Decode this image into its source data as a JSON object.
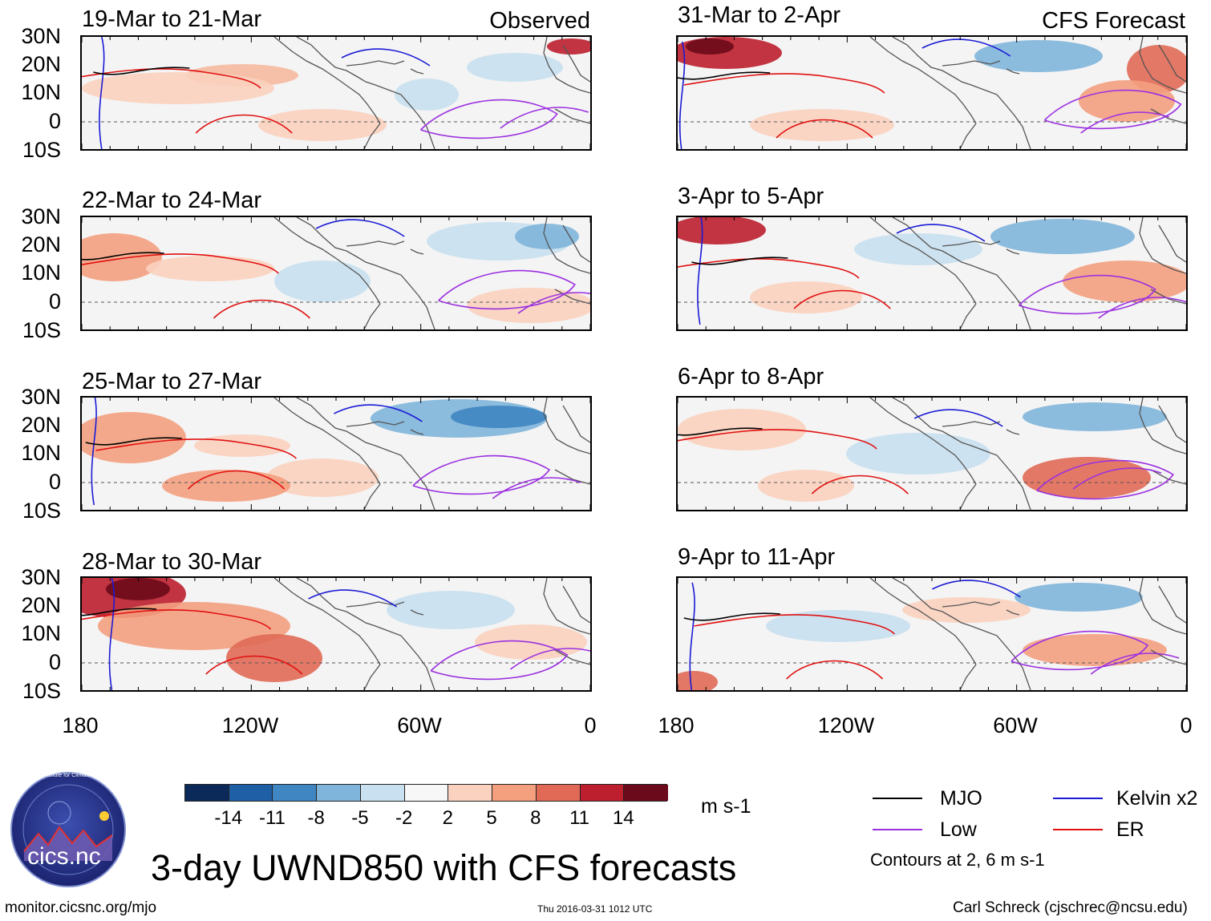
{
  "figure": {
    "title": "3-day UWND850 with CFS forecasts",
    "footer_left": "monitor.cicsnc.org/mjo",
    "footer_center": "Thu 2016-03-31 1012 UTC",
    "footer_right": "Carl Schreck (cjschrec@ncsu.edu)"
  },
  "columns": {
    "left_label": "Observed",
    "right_label": "CFS Forecast"
  },
  "axes": {
    "lat_ticks": [
      "30N",
      "20N",
      "10N",
      "0",
      "10S"
    ],
    "lon_ticks": [
      "180",
      "120W",
      "60W",
      "0"
    ]
  },
  "panels": [
    {
      "period": "19-Mar to 21-Mar",
      "column": "observed"
    },
    {
      "period": "22-Mar to 24-Mar",
      "column": "observed"
    },
    {
      "period": "25-Mar to 27-Mar",
      "column": "observed"
    },
    {
      "period": "28-Mar to 30-Mar",
      "column": "observed"
    },
    {
      "period": "31-Mar to 2-Apr",
      "column": "forecast"
    },
    {
      "period": "3-Apr to 5-Apr",
      "column": "forecast"
    },
    {
      "period": "6-Apr to 8-Apr",
      "column": "forecast"
    },
    {
      "period": "9-Apr to 11-Apr",
      "column": "forecast"
    }
  ],
  "colorbar": {
    "unit": "m s-1",
    "ticks": [
      "-14",
      "-11",
      "-8",
      "-5",
      "-2",
      "2",
      "5",
      "8",
      "11",
      "14"
    ],
    "colors": [
      "#0b2a5a",
      "#1f5fa5",
      "#3f86c2",
      "#7fb5da",
      "#c8e0f0",
      "#f7f7f7",
      "#fbd2bf",
      "#f4a07f",
      "#e06a55",
      "#bd1f2e",
      "#6b0a1a"
    ]
  },
  "legend": {
    "items": [
      {
        "label": "MJO",
        "color": "#000000"
      },
      {
        "label": "Kelvin x2",
        "color": "#1a1ad6"
      },
      {
        "label": "Low",
        "color": "#9b30e0"
      },
      {
        "label": "ER",
        "color": "#e01010"
      }
    ],
    "note": "Contours at 2, 6 m s-1"
  },
  "logo": {
    "text": "cics.nc",
    "ring_text": "Cooperative Institute for Climate and Satellites"
  },
  "colors": {
    "map_background": "#f4f4f4",
    "land_outline": "#555555",
    "equator": "#555555"
  }
}
